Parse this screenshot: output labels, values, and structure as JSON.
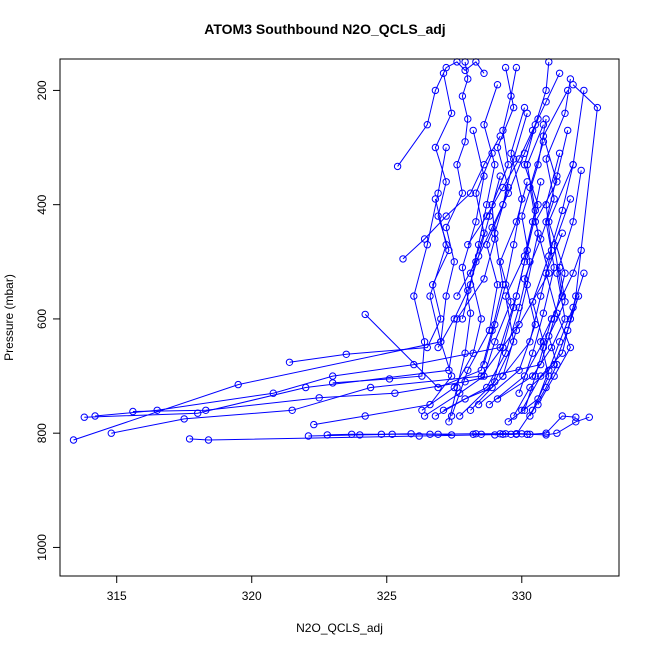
{
  "chart_data": {
    "type": "scatter",
    "title": "ATOM3 Southbound N2O_QCLS_adj",
    "xlabel": "N2O_QCLS_adj",
    "ylabel": "Pressure (mbar)",
    "xlim": [
      312.9,
      333.6
    ],
    "ylim": [
      1050,
      145
    ],
    "y_reversed": true,
    "x_ticks": [
      315,
      320,
      325,
      330
    ],
    "y_ticks": [
      200,
      400,
      600,
      800,
      1000
    ],
    "grid": false,
    "color": "#0000ff",
    "series": [
      {
        "x": [
          313.4,
          319.5,
          327.0,
          327.2,
          327.5,
          327.2,
          327.8,
          327.6,
          327.9,
          328.0,
          327.8,
          328.0,
          327.9
        ],
        "y": [
          812,
          715,
          640,
          560,
          500,
          440,
          380,
          330,
          290,
          250,
          210,
          180,
          150
        ]
      },
      {
        "x": [
          313.8,
          318.0,
          322.0,
          327.3,
          327.6,
          328.6,
          329.0,
          328.9,
          329.5,
          329.3,
          329.6,
          329.8
        ],
        "y": [
          772,
          765,
          720,
          690,
          600,
          530,
          460,
          400,
          330,
          270,
          210,
          160
        ]
      },
      {
        "x": [
          314.2,
          316.5,
          320.8,
          323.0,
          326.0,
          329.2,
          329.8,
          330.2,
          330.6,
          330.1,
          330.5,
          330.9,
          331.0
        ],
        "y": [
          770,
          760,
          730,
          700,
          680,
          650,
          560,
          480,
          400,
          330,
          260,
          200,
          150
        ]
      },
      {
        "x": [
          314.8,
          317.5,
          321.5,
          324.4,
          328.5,
          329.9,
          331.0,
          330.5,
          331.3,
          330.8,
          331.7
        ],
        "y": [
          800,
          775,
          760,
          720,
          700,
          610,
          520,
          430,
          360,
          280,
          200
        ]
      },
      {
        "x": [
          315.6,
          318.3,
          322.5,
          325.3,
          327.9,
          330.7,
          331.2,
          331.6,
          331.0,
          331.9,
          332.3
        ],
        "y": [
          762,
          760,
          738,
          730,
          710,
          680,
          600,
          520,
          430,
          330,
          200
        ]
      },
      {
        "x": [
          317.7,
          318.4,
          326.2,
          329.8,
          330.4,
          331.0,
          330.7,
          331.5,
          331.2,
          331.8
        ],
        "y": [
          810,
          812,
          805,
          802,
          760,
          700,
          640,
          560,
          470,
          390
        ]
      },
      {
        "x": [
          322.1,
          324.0,
          325.2,
          326.6,
          328.3,
          329.4,
          330.2,
          330.9,
          331.3,
          332.0,
          332.5
        ],
        "y": [
          805,
          803,
          802,
          802,
          801,
          801,
          802,
          803,
          800,
          780,
          772
        ]
      },
      {
        "x": [
          321.4,
          323.5,
          326.5,
          327.0,
          326.7,
          327.3,
          326.9,
          327.2,
          326.8,
          327.4,
          327.1
        ],
        "y": [
          676,
          662,
          650,
          600,
          540,
          480,
          420,
          360,
          300,
          240,
          170
        ]
      },
      {
        "x": [
          322.3,
          324.2,
          326.6,
          327.4,
          327.0,
          326.6,
          327.2,
          326.8
        ],
        "y": [
          785,
          770,
          750,
          700,
          640,
          560,
          470,
          390
        ]
      },
      {
        "x": [
          323.0,
          325.1,
          326.3,
          326.4,
          326.0,
          326.5,
          326.9,
          327.2
        ],
        "y": [
          712,
          705,
          700,
          640,
          560,
          470,
          380,
          300
        ]
      },
      {
        "x": [
          324.2,
          326.9,
          328.5,
          328.9,
          329.3,
          329.0,
          329.5,
          329.1,
          329.7,
          329.4
        ],
        "y": [
          592,
          720,
          690,
          620,
          540,
          450,
          370,
          300,
          230,
          160
        ]
      },
      {
        "x": [
          325.4,
          326.5,
          326.8,
          327.2,
          327.6,
          327.9,
          328.3,
          328.6
        ],
        "y": [
          333,
          260,
          200,
          160,
          150,
          165,
          150,
          170
        ]
      },
      {
        "x": [
          325.6,
          326.4,
          327.2,
          328.1,
          328.6,
          329.2
        ],
        "y": [
          495,
          460,
          420,
          380,
          330,
          280
        ]
      },
      {
        "x": [
          326.3,
          327.5,
          328.2,
          328.5,
          328.1,
          328.6,
          328.3,
          328.9
        ],
        "y": [
          760,
          720,
          660,
          600,
          520,
          450,
          380,
          310
        ]
      },
      {
        "x": [
          326.4,
          327.7,
          328.6,
          329.0,
          329.6,
          329.2,
          329.8,
          330.2
        ],
        "y": [
          770,
          730,
          700,
          640,
          570,
          500,
          430,
          360
        ]
      },
      {
        "x": [
          326.8,
          327.9,
          328.9,
          329.3,
          329.7,
          330.1,
          330.4,
          330.7
        ],
        "y": [
          770,
          740,
          720,
          650,
          580,
          500,
          430,
          360
        ]
      },
      {
        "x": [
          327.1,
          328.7,
          329.4,
          329.9,
          330.3,
          330.0,
          330.6,
          330.9
        ],
        "y": [
          760,
          720,
          660,
          580,
          500,
          420,
          330,
          250
        ]
      },
      {
        "x": [
          327.4,
          328.0,
          328.8,
          329.1,
          328.7,
          329.3,
          329.7,
          330.2
        ],
        "y": [
          770,
          690,
          620,
          540,
          470,
          400,
          320,
          240
        ]
      },
      {
        "x": [
          327.7,
          329.0,
          329.7,
          329.4,
          330.1,
          330.5,
          330.2,
          330.8
        ],
        "y": [
          770,
          710,
          640,
          560,
          490,
          410,
          330,
          260
        ]
      },
      {
        "x": [
          328.1,
          329.3,
          330.3,
          330.7,
          331.1,
          330.9,
          331.4
        ],
        "y": [
          760,
          700,
          640,
          560,
          480,
          400,
          310
        ]
      },
      {
        "x": [
          328.4,
          329.9,
          330.5,
          330.1,
          330.7,
          331.2,
          330.9,
          331.6,
          331.8
        ],
        "y": [
          750,
          690,
          610,
          530,
          460,
          390,
          320,
          240,
          180
        ]
      },
      {
        "x": [
          328.8,
          330.1,
          330.8,
          330.4,
          331.0,
          331.5,
          331.9
        ],
        "y": [
          750,
          700,
          640,
          570,
          490,
          410,
          330
        ]
      },
      {
        "x": [
          329.1,
          330.4,
          331.1,
          331.6,
          331.3,
          331.9,
          332.2
        ],
        "y": [
          740,
          700,
          650,
          600,
          520,
          430,
          340
        ]
      },
      {
        "x": [
          329.5,
          330.6,
          331.0,
          331.4,
          331.9,
          332.3
        ],
        "y": [
          780,
          740,
          690,
          640,
          580,
          520
        ]
      },
      {
        "x": [
          329.7,
          330.3,
          331.2,
          331.7,
          332.1,
          331.8
        ],
        "y": [
          770,
          720,
          680,
          620,
          560,
          600
        ]
      },
      {
        "x": [
          330.0,
          330.7,
          331.5,
          332.0,
          332.8,
          331.9
        ],
        "y": [
          760,
          700,
          660,
          560,
          230,
          190
        ]
      },
      {
        "x": [
          330.3,
          330.9,
          331.3,
          331.0,
          331.6,
          331.4
        ],
        "y": [
          770,
          720,
          680,
          630,
          570,
          510
        ]
      },
      {
        "x": [
          330.6,
          331.2,
          331.8,
          331.3,
          330.9,
          331.5
        ],
        "y": [
          750,
          700,
          650,
          590,
          520,
          450
        ]
      },
      {
        "x": [
          328.2,
          328.5,
          329.2,
          329.8,
          330.3,
          330.9,
          331.5,
          332.0
        ],
        "y": [
          802,
          802,
          801,
          801,
          802,
          800,
          770,
          772
        ]
      },
      {
        "x": [
          329.0,
          329.3,
          329.6,
          329.8,
          330.0,
          330.2
        ],
        "y": [
          803,
          802,
          802,
          801,
          801,
          802
        ]
      },
      {
        "x": [
          322.8,
          323.7,
          324.8,
          325.9,
          326.9,
          327.4
        ],
        "y": [
          803,
          802,
          802,
          801,
          802,
          803
        ]
      },
      {
        "x": [
          327.3,
          327.6,
          327.9,
          328.1,
          327.8,
          328.3,
          328.6,
          328.2
        ],
        "y": [
          780,
          720,
          660,
          590,
          510,
          430,
          350,
          270
        ]
      },
      {
        "x": [
          327.8,
          328.1,
          328.4,
          328.7,
          329.0,
          328.6,
          329.1
        ],
        "y": [
          600,
          540,
          470,
          400,
          330,
          260,
          190
        ]
      },
      {
        "x": [
          328.6,
          329.0,
          329.4,
          329.7,
          330.0,
          329.6,
          330.1
        ],
        "y": [
          680,
          610,
          540,
          470,
          390,
          310,
          230
        ]
      },
      {
        "x": [
          329.3,
          329.8,
          330.2,
          330.6,
          330.3,
          330.8
        ],
        "y": [
          700,
          620,
          540,
          450,
          370,
          290
        ]
      },
      {
        "x": [
          329.9,
          330.4,
          330.8,
          331.2,
          330.9,
          331.3,
          331.7
        ],
        "y": [
          730,
          660,
          590,
          510,
          430,
          350,
          270
        ]
      },
      {
        "x": [
          326.9,
          327.5,
          328.0,
          328.4,
          328.8,
          329.2
        ],
        "y": [
          650,
          600,
          550,
          490,
          420,
          350
        ]
      },
      {
        "x": [
          327.6,
          328.3,
          328.9,
          329.5,
          330.1,
          330.6
        ],
        "y": [
          560,
          500,
          440,
          380,
          310,
          250
        ]
      },
      {
        "x": [
          328.0,
          328.7,
          329.3,
          329.9,
          330.4,
          330.9,
          331.4
        ],
        "y": [
          470,
          420,
          370,
          320,
          270,
          220,
          170
        ]
      },
      {
        "x": [
          330.1,
          330.5,
          330.8,
          331.1,
          331.5,
          331.9,
          332.2
        ],
        "y": [
          760,
          700,
          650,
          600,
          560,
          520,
          480
        ]
      }
    ]
  }
}
